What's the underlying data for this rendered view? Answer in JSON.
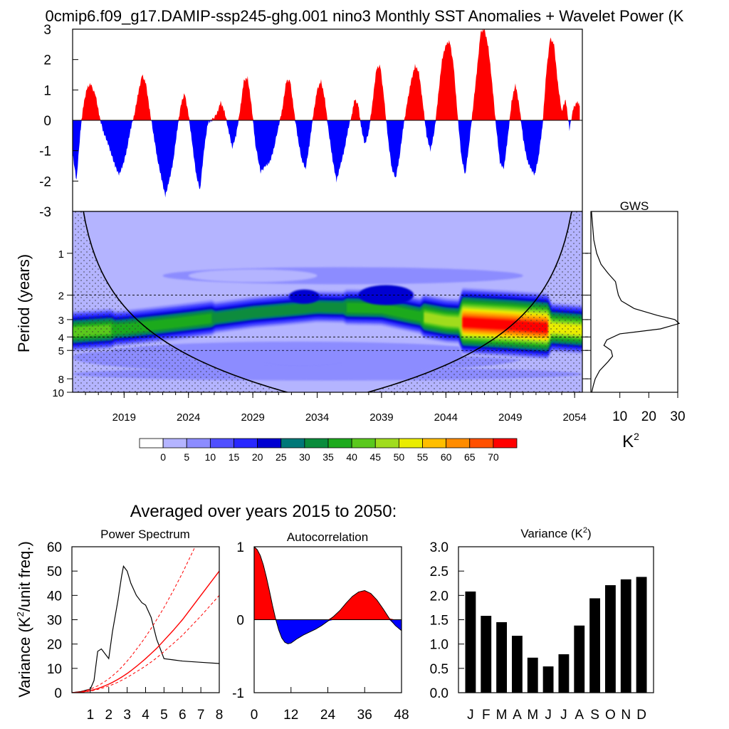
{
  "title": "0cmip6.f09_g17.DAMIP-ssp245-ghg.001 nino3 Monthly SST Anomalies + Wavelet Power (K",
  "averaged_title": "Averaged over years 2015 to 2050:",
  "colors": {
    "pos": "#ff0000",
    "neg": "#0000ff",
    "bar": "#000000"
  },
  "colorbar": {
    "labels": [
      "0",
      "5",
      "10",
      "15",
      "20",
      "25",
      "30",
      "35",
      "40",
      "45",
      "50",
      "55",
      "60",
      "65",
      "70"
    ],
    "colors": [
      "#ffffff",
      "#b4b4ff",
      "#8c8cff",
      "#5050ff",
      "#2828ff",
      "#0000d2",
      "#007878",
      "#0a8c3c",
      "#1eaa1e",
      "#5ac81e",
      "#a0dc1e",
      "#eaec00",
      "#ffbe00",
      "#ff8c00",
      "#ff5000",
      "#ff0000"
    ]
  },
  "chart_data": [
    {
      "type": "area",
      "name": "sst-anomaly",
      "x_unit": "year",
      "ylim": [
        -3,
        3
      ],
      "yticks": [
        "-3",
        "-2",
        "-1",
        "0",
        "1",
        "2",
        "3"
      ],
      "points": [
        [
          2015.0,
          -1.1
        ],
        [
          2015.3,
          -2.0
        ],
        [
          2015.6,
          -0.4
        ],
        [
          2015.8,
          0.4
        ],
        [
          2016.1,
          1.05
        ],
        [
          2016.4,
          1.2
        ],
        [
          2016.8,
          0.8
        ],
        [
          2017.1,
          0.1
        ],
        [
          2017.4,
          -0.4
        ],
        [
          2017.7,
          -0.7
        ],
        [
          2018.0,
          -1.1
        ],
        [
          2018.3,
          -1.5
        ],
        [
          2018.6,
          -1.8
        ],
        [
          2018.9,
          -1.5
        ],
        [
          2019.2,
          -1.0
        ],
        [
          2019.5,
          -0.3
        ],
        [
          2019.8,
          0.2
        ],
        [
          2020.1,
          0.9
        ],
        [
          2020.4,
          1.5
        ],
        [
          2020.7,
          1.2
        ],
        [
          2021.0,
          0.3
        ],
        [
          2021.3,
          -0.5
        ],
        [
          2021.6,
          -1.3
        ],
        [
          2021.9,
          -1.9
        ],
        [
          2022.2,
          -2.5
        ],
        [
          2022.5,
          -2.0
        ],
        [
          2022.8,
          -1.4
        ],
        [
          2023.1,
          -0.4
        ],
        [
          2023.4,
          0.5
        ],
        [
          2023.7,
          0.9
        ],
        [
          2024.0,
          0.2
        ],
        [
          2024.3,
          -0.8
        ],
        [
          2024.6,
          -1.8
        ],
        [
          2024.9,
          -2.3
        ],
        [
          2025.2,
          -1.0
        ],
        [
          2025.5,
          -0.1
        ],
        [
          2025.8,
          0.0
        ],
        [
          2026.2,
          0.2
        ],
        [
          2026.5,
          0.6
        ],
        [
          2026.8,
          0.3
        ],
        [
          2027.1,
          -0.3
        ],
        [
          2027.4,
          -0.9
        ],
        [
          2027.7,
          -0.5
        ],
        [
          2028.0,
          0.3
        ],
        [
          2028.3,
          1.3
        ],
        [
          2028.6,
          1.4
        ],
        [
          2028.9,
          0.5
        ],
        [
          2029.2,
          -0.8
        ],
        [
          2029.6,
          -1.7
        ],
        [
          2030.0,
          -1.5
        ],
        [
          2030.3,
          -1.4
        ],
        [
          2030.6,
          -1.0
        ],
        [
          2031.0,
          -0.2
        ],
        [
          2031.3,
          0.4
        ],
        [
          2031.6,
          1.3
        ],
        [
          2031.9,
          1.3
        ],
        [
          2032.2,
          0.3
        ],
        [
          2032.5,
          -0.6
        ],
        [
          2032.8,
          -1.3
        ],
        [
          2033.1,
          -1.6
        ],
        [
          2033.4,
          -0.8
        ],
        [
          2033.7,
          0.2
        ],
        [
          2034.0,
          1.0
        ],
        [
          2034.3,
          1.3
        ],
        [
          2034.6,
          0.7
        ],
        [
          2034.9,
          -0.4
        ],
        [
          2035.2,
          -1.3
        ],
        [
          2035.5,
          -2.0
        ],
        [
          2035.8,
          -1.5
        ],
        [
          2036.1,
          -1.0
        ],
        [
          2036.4,
          -0.3
        ],
        [
          2036.7,
          0.2
        ],
        [
          2036.9,
          0.7
        ],
        [
          2037.2,
          0.5
        ],
        [
          2037.4,
          -0.2
        ],
        [
          2037.7,
          -0.8
        ],
        [
          2038.0,
          -0.4
        ],
        [
          2038.3,
          0.6
        ],
        [
          2038.6,
          1.7
        ],
        [
          2038.9,
          1.8
        ],
        [
          2039.2,
          0.7
        ],
        [
          2039.5,
          -0.6
        ],
        [
          2039.8,
          -1.6
        ],
        [
          2040.1,
          -1.9
        ],
        [
          2040.4,
          -1.2
        ],
        [
          2040.7,
          -0.2
        ],
        [
          2041.0,
          0.6
        ],
        [
          2041.3,
          1.3
        ],
        [
          2041.6,
          1.8
        ],
        [
          2041.9,
          1.6
        ],
        [
          2042.2,
          0.6
        ],
        [
          2042.5,
          -0.5
        ],
        [
          2042.8,
          -1.0
        ],
        [
          2043.1,
          -0.4
        ],
        [
          2043.4,
          0.8
        ],
        [
          2043.7,
          2.0
        ],
        [
          2044.0,
          2.5
        ],
        [
          2044.3,
          2.6
        ],
        [
          2044.6,
          1.8
        ],
        [
          2044.9,
          0.2
        ],
        [
          2045.2,
          -1.2
        ],
        [
          2045.5,
          -1.8
        ],
        [
          2045.8,
          -0.8
        ],
        [
          2046.1,
          0.4
        ],
        [
          2046.4,
          1.6
        ],
        [
          2046.7,
          2.9
        ],
        [
          2047.0,
          3.0
        ],
        [
          2047.3,
          2.4
        ],
        [
          2047.6,
          1.2
        ],
        [
          2047.9,
          -0.2
        ],
        [
          2048.2,
          -1.4
        ],
        [
          2048.5,
          -1.6
        ],
        [
          2048.8,
          -0.6
        ],
        [
          2049.1,
          0.6
        ],
        [
          2049.4,
          1.2
        ],
        [
          2049.7,
          0.5
        ],
        [
          2050.0,
          -0.6
        ],
        [
          2050.3,
          -1.3
        ],
        [
          2050.6,
          -1.6
        ],
        [
          2050.9,
          -1.8
        ],
        [
          2051.2,
          -1.2
        ],
        [
          2051.5,
          -0.2
        ],
        [
          2051.8,
          1.6
        ],
        [
          2052.1,
          2.7
        ],
        [
          2052.4,
          2.5
        ],
        [
          2052.7,
          1.2
        ],
        [
          2053.0,
          0.3
        ],
        [
          2053.3,
          0.7
        ],
        [
          2053.6,
          -0.3
        ],
        [
          2053.9,
          0.4
        ],
        [
          2054.2,
          0.6
        ],
        [
          2054.4,
          0.5
        ]
      ]
    },
    {
      "type": "heatmap",
      "name": "wavelet-power",
      "xticks": [
        "2019",
        "2024",
        "2029",
        "2034",
        "2039",
        "2044",
        "2049",
        "2054"
      ],
      "yticks": [
        "1",
        "2",
        "3",
        "4",
        "5",
        "8",
        "10"
      ],
      "ylabel": "Period (years)",
      "xlim": [
        2015,
        2054.6
      ],
      "period_range": [
        0.5,
        10
      ],
      "cone_of_influence": true,
      "dashed_periods": [
        2,
        4,
        5
      ],
      "power_peaks": [
        {
          "period": 3.7,
          "start": 2015,
          "end": 2054.6,
          "base_level": 9
        },
        {
          "period": 3.3,
          "start": 2044,
          "end": 2051,
          "peak_level": 15
        },
        {
          "period": 2.0,
          "start": 2038,
          "end": 2041,
          "peak_level": 9
        },
        {
          "period": 5.5,
          "start": 2029,
          "end": 2037,
          "peak_level": 5
        }
      ]
    },
    {
      "type": "line",
      "name": "global-wavelet-spectrum",
      "title": "GWS",
      "xlabel": "K2",
      "xticks": [
        "10",
        "20",
        "30"
      ],
      "xlim": [
        0,
        30
      ],
      "period": [
        0.5,
        0.8,
        1.0,
        1.2,
        1.4,
        1.6,
        1.8,
        2.0,
        2.2,
        2.5,
        2.8,
        3.0,
        3.2,
        3.5,
        3.8,
        4.2,
        4.6,
        5.0,
        5.5,
        6.0,
        7.0,
        8.0,
        9.0,
        10.0
      ],
      "power": [
        0.2,
        1.0,
        2.0,
        3.5,
        6.0,
        8.5,
        9.0,
        9.5,
        10.5,
        15.0,
        23.0,
        29.0,
        30.5,
        24.0,
        10.0,
        5.5,
        4.5,
        7.0,
        7.5,
        6.0,
        3.0,
        1.5,
        0.8,
        0.3
      ]
    },
    {
      "type": "line",
      "name": "power-spectrum",
      "title": "Power Spectrum",
      "ylabel": "Variance (K2/unit freq.)",
      "xticks": [
        "1",
        "2",
        "3",
        "4",
        "5",
        "6",
        "7",
        "8"
      ],
      "yticks": [
        "0",
        "10",
        "20",
        "30",
        "40",
        "50",
        "60"
      ],
      "xlim": [
        0,
        8
      ],
      "ylim": [
        0,
        60
      ],
      "x": [
        0.0,
        0.5,
        1.0,
        1.2,
        1.4,
        1.6,
        1.8,
        2.0,
        2.2,
        2.5,
        2.7,
        2.8,
        3.0,
        3.2,
        3.5,
        3.8,
        4.0,
        4.3,
        4.6,
        5.0,
        5.5,
        6.0,
        7.0,
        8.0
      ],
      "series": [
        {
          "values": [
            0,
            0.5,
            1.5,
            5,
            17,
            18,
            16,
            14,
            25,
            38,
            48,
            52,
            50,
            45,
            40,
            37,
            36,
            31,
            22,
            14,
            13.5,
            13,
            12.5,
            12
          ]
        },
        {
          "values": [
            0,
            0.16,
            0.69,
            1.0,
            1.35,
            1.77,
            2.24,
            2.75,
            3.33,
            4.3,
            5.1,
            5.5,
            6.3,
            7.2,
            8.6,
            10.0,
            11.0,
            12.6,
            14.3,
            16.9,
            20.2,
            23.6,
            31.5,
            40.0
          ]
        },
        {
          "values": [
            0,
            0.35,
            1.45,
            2.1,
            2.8,
            3.7,
            4.65,
            5.7,
            6.9,
            8.9,
            10.5,
            11.3,
            13.0,
            14.8,
            17.8,
            20.8,
            23.0,
            26.4,
            30.0,
            35.0,
            41.9,
            49.2,
            64.9,
            82.0
          ]
        },
        {
          "values": [
            0,
            0.22,
            0.88,
            1.27,
            1.72,
            2.25,
            2.85,
            3.5,
            4.25,
            5.5,
            6.4,
            6.9,
            7.9,
            9.0,
            10.8,
            12.7,
            14.0,
            16.1,
            18.2,
            21.5,
            25.6,
            30.0,
            40.0,
            50.0
          ]
        }
      ]
    },
    {
      "type": "area",
      "name": "autocorrelation",
      "title": "Autocorrelation",
      "xticks": [
        "0",
        "12",
        "24",
        "36",
        "48"
      ],
      "yticks": [
        "-1",
        "0",
        "1"
      ],
      "xlim": [
        0,
        48
      ],
      "ylim": [
        -1,
        1
      ],
      "x": [
        0,
        1,
        2,
        3,
        4,
        5,
        6,
        7,
        8,
        9,
        10,
        11,
        12,
        13,
        14,
        16,
        18,
        20,
        22,
        24,
        26,
        28,
        30,
        32,
        34,
        36,
        38,
        40,
        42,
        44,
        46,
        48
      ],
      "values": [
        1.0,
        0.96,
        0.88,
        0.75,
        0.58,
        0.39,
        0.19,
        0.01,
        -0.14,
        -0.25,
        -0.31,
        -0.33,
        -0.32,
        -0.29,
        -0.26,
        -0.21,
        -0.17,
        -0.13,
        -0.08,
        -0.02,
        0.05,
        0.13,
        0.23,
        0.32,
        0.38,
        0.4,
        0.36,
        0.27,
        0.15,
        0.02,
        -0.08,
        -0.15
      ]
    },
    {
      "type": "bar",
      "name": "monthly-variance",
      "title": "Variance (K2)",
      "categories": [
        "J",
        "F",
        "M",
        "A",
        "M",
        "J",
        "J",
        "A",
        "S",
        "O",
        "N",
        "D"
      ],
      "values": [
        2.08,
        1.58,
        1.45,
        1.17,
        0.72,
        0.54,
        0.79,
        1.38,
        1.94,
        2.21,
        2.33,
        2.38
      ],
      "yticks": [
        "0.0",
        "0.5",
        "1.0",
        "1.5",
        "2.0",
        "2.5",
        "3.0"
      ],
      "ylim": [
        0,
        3
      ]
    }
  ]
}
